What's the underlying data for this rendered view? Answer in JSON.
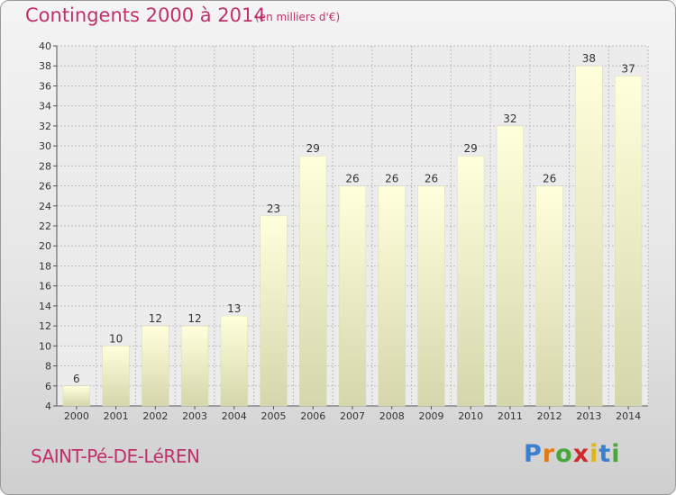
{
  "chart_data": {
    "type": "bar",
    "title": "Contingents 2000 à 2014",
    "subtitle": "(en milliers d'€)",
    "categories": [
      "2000",
      "2001",
      "2002",
      "2003",
      "2004",
      "2005",
      "2006",
      "2007",
      "2008",
      "2009",
      "2010",
      "2011",
      "2012",
      "2013",
      "2014"
    ],
    "values": [
      6,
      10,
      12,
      12,
      13,
      23,
      29,
      26,
      26,
      26,
      29,
      32,
      26,
      38,
      37
    ],
    "ylim": [
      4,
      40
    ],
    "yticks": [
      4,
      6,
      8,
      10,
      12,
      14,
      16,
      18,
      20,
      22,
      24,
      26,
      28,
      30,
      32,
      34,
      36,
      38,
      40
    ],
    "grid": true,
    "data_labels": true
  },
  "footer": {
    "commune": "SAINT-Pé-DE-LéREN",
    "logo_letters": [
      "P",
      "r",
      "o",
      "x",
      "i",
      "t",
      "i"
    ]
  },
  "colors": {
    "title": "#c0306a",
    "bar_top": "#ffffdc",
    "bar_bottom": "#d6d6ac",
    "logo": [
      "#3a7fd0",
      "#e07b1a",
      "#4aa53a",
      "#d12a2a",
      "#e0b51a",
      "#3a7fd0",
      "#4aa53a"
    ]
  }
}
